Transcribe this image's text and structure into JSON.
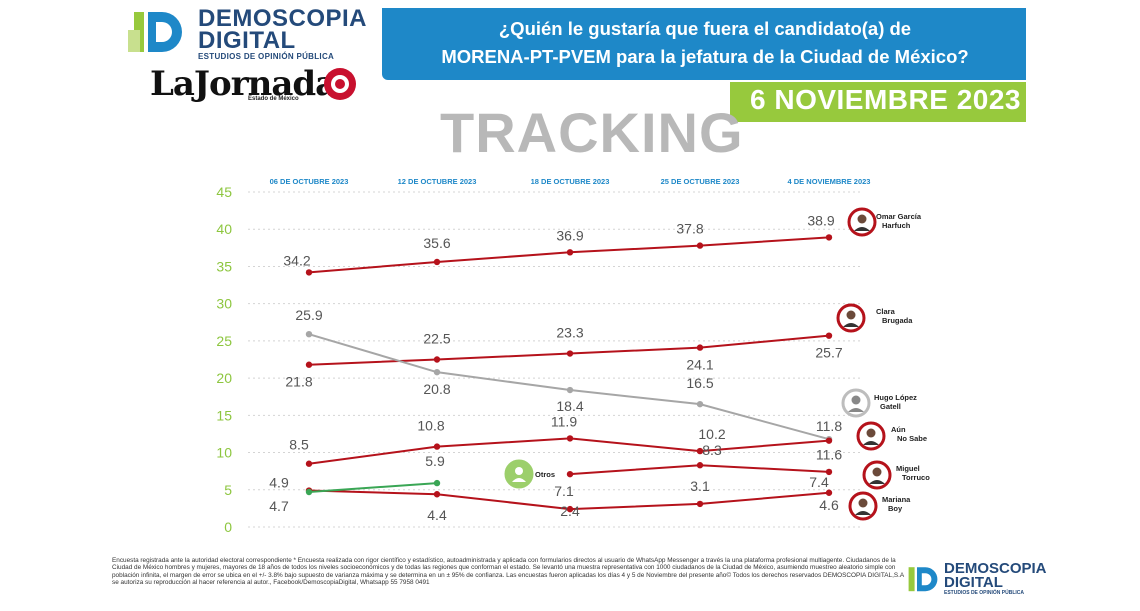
{
  "header": {
    "brand_line1": "DEMOSCOPIA",
    "brand_line2": "DIGITAL",
    "brand_sub": "ESTUDIOS DE OPINIÓN PÚBLICA",
    "partner": "LaJornada",
    "partner_sub": "Estado de México",
    "question_line1": "¿Quién le gustaría que fuera el candidato(a) de",
    "question_line2": "MORENA-PT-PVEM para la jefatura de la Ciudad de México?",
    "date": "6 NOVIEMBRE 2023",
    "tracking": "TRACKING"
  },
  "colors": {
    "red": "#b5121b",
    "gray": "#a6a6a6",
    "green": "#3aa655",
    "axis_green": "#8dc63f",
    "blue_banner": "#1e88c8",
    "green_banner": "#97c93d"
  },
  "chart_data": {
    "type": "line",
    "title": "¿Quién le gustaría que fuera el candidato(a) de MORENA-PT-PVEM para la jefatura de la Ciudad de México?",
    "x": [
      "06 DE OCTUBRE 2023",
      "12 DE OCTUBRE 2023",
      "18 DE OCTUBRE 2023",
      "25 DE OCTUBRE 2023",
      "4  DE NOVIEMBRE 2023"
    ],
    "ylim": [
      0,
      45
    ],
    "yticks": [
      "0",
      "5",
      "10",
      "15",
      "20",
      "25",
      "30",
      "35",
      "40",
      "45"
    ],
    "series": [
      {
        "name": "Omar García Harfuch",
        "name_line1": "Omar García",
        "name_line2": "Harfuch",
        "color": "red",
        "values": [
          34.2,
          35.6,
          36.9,
          37.8,
          38.9
        ],
        "labels": [
          "34.2",
          "35.6",
          "36.9",
          "37.8",
          "38.9"
        ]
      },
      {
        "name": "Clara Brugada",
        "name_line1": "Clara",
        "name_line2": "Brugada",
        "color": "red",
        "values": [
          21.8,
          22.5,
          23.3,
          24.1,
          25.7
        ],
        "labels": [
          "21.8",
          "22.5",
          "23.3",
          "24.1",
          "25.7"
        ]
      },
      {
        "name": "Hugo López Gatell",
        "name_line1": "Hugo López",
        "name_line2": "Gatell",
        "color": "gray",
        "values": [
          25.9,
          20.8,
          18.4,
          16.5,
          11.8
        ],
        "labels": [
          "25.9",
          "20.8",
          "18.4",
          "16.5",
          "11.8"
        ]
      },
      {
        "name": "Aún No Sabe",
        "name_line1": "Aún",
        "name_line2": "No Sabe",
        "color": "red",
        "values": [
          8.5,
          10.8,
          11.9,
          10.2,
          11.6
        ],
        "labels": [
          "8.5",
          "10.8",
          "11.9",
          "10.2",
          "11.6"
        ]
      },
      {
        "name": "Miguel Torruco",
        "name_line1": "Miguel",
        "name_line2": "Torruco",
        "color": "red",
        "values": [
          null,
          null,
          7.1,
          8.3,
          7.4
        ],
        "labels": [
          "",
          "",
          "7.1",
          "8.3",
          "7.4"
        ]
      },
      {
        "name": "Mariana Boy",
        "name_line1": "Mariana",
        "name_line2": "Boy",
        "color": "red",
        "values": [
          4.9,
          4.4,
          2.4,
          3.1,
          4.6
        ],
        "labels": [
          "4.9",
          "4.4",
          "2.4",
          "3.1",
          "4.6"
        ]
      },
      {
        "name": "Otros",
        "name_line1": "Otros",
        "name_line2": "",
        "color": "green",
        "values": [
          4.7,
          5.9,
          null,
          null,
          null
        ],
        "labels": [
          "4.7",
          "5.9",
          "",
          "",
          ""
        ]
      }
    ]
  },
  "footer": {
    "text": "Encuesta registrada ante la autoridad electoral correspondiente * Encuesta realizada con rigor científico y estadístico, autoadministrada y aplicada con formularios directos al usuario de WhatsApp Messenger a través la una plataforma profesional multiagente. Ciudadanos de la Ciudad de México hombres y mujeres, mayores de 18 años de todos los niveles socioeconómicos y de todas las regiones que conforman el estado. Se levantó una muestra representativa con 1000 ciudadanos de la Ciudad de México, asumiendo muestreo aleatorio simple con población infinita, el margen de error se ubica en el +/- 3.8% bajo supuesto de varianza máxima y se determina en un ± 95% de confianza. Las encuestas fueron aplicadas los días 4 y 5 de Noviembre del presente año© Todos los derechos reservados DEMOSCOPIA DIGITAL,S.A se autoriza su reproducción al hacer referencia al autor., Facebook/DemoscopiaDigital, Whatsapp 55 7958 0491",
    "brand_line1": "DEMOSCOPIA",
    "brand_line2": "DIGITAL",
    "brand_sub": "ESTUDIOS DE OPINIÓN PÚBLICA"
  }
}
